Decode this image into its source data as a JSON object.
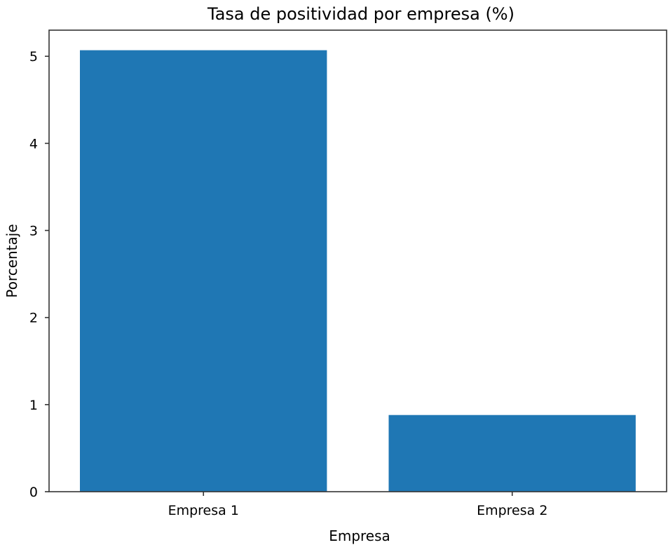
{
  "chart_data": {
    "type": "bar",
    "title": "Tasa de positividad por empresa (%)",
    "xlabel": "Empresa",
    "ylabel": "Porcentaje",
    "categories": [
      "Empresa 1",
      "Empresa 2"
    ],
    "values": [
      5.07,
      0.88
    ],
    "ylim": [
      0,
      5.3
    ],
    "yticks": [
      0,
      1,
      2,
      3,
      4,
      5
    ],
    "bar_color": "#1f77b4",
    "grid": false,
    "legend": "none"
  }
}
